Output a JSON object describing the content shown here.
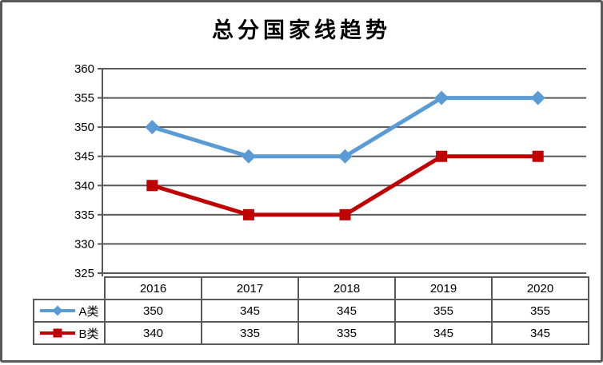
{
  "chart_data": {
    "type": "line",
    "title": "总分国家线趋势",
    "categories": [
      "2016",
      "2017",
      "2018",
      "2019",
      "2020"
    ],
    "series": [
      {
        "name": "A类",
        "values": [
          350,
          345,
          345,
          355,
          355
        ],
        "color": "#5B9BD5",
        "marker": "diamond"
      },
      {
        "name": "B类",
        "values": [
          340,
          335,
          335,
          345,
          345
        ],
        "color": "#C00000",
        "marker": "square"
      }
    ],
    "ylim": [
      325,
      360
    ],
    "yticks": [
      360,
      355,
      350,
      345,
      340,
      335,
      330,
      325
    ],
    "grid": true,
    "legend_position": "table-left",
    "colors": {
      "gridline": "#595959",
      "axis": "#595959",
      "table_border": "#595959",
      "frame_border": "#595959",
      "text": "#000000",
      "background": "#FFFFFF"
    }
  }
}
